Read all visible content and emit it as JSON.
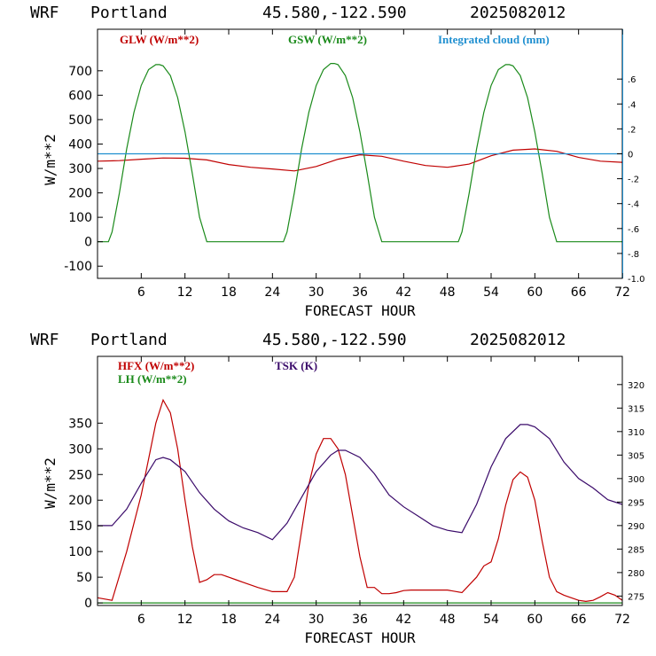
{
  "charts": [
    {
      "header": {
        "model": "WRF",
        "location": "Portland",
        "coords": "45.580,-122.590",
        "run": "2025082012"
      },
      "ylabel": "W/m**2",
      "xlabel": "FORECAST HOUR",
      "xticks": [
        "6",
        "12",
        "18",
        "24",
        "30",
        "36",
        "42",
        "48",
        "54",
        "60",
        "66",
        "72"
      ],
      "yticks": [
        "700",
        "600",
        "500",
        "400",
        "300",
        "200",
        "100",
        "0",
        "-100"
      ],
      "rticks": [
        ".6",
        ".4",
        ".2",
        "0",
        "-.2",
        "-.4",
        "-.6",
        "-.8",
        "-1.0"
      ],
      "legend": [
        {
          "label": "GLW (W/m**2)",
          "color": "#c00000"
        },
        {
          "label": "GSW (W/m**2)",
          "color": "#1a8a1a"
        },
        {
          "label": "Integrated cloud (mm)",
          "color": "#1f8fd0"
        }
      ]
    },
    {
      "header": {
        "model": "WRF",
        "location": "Portland",
        "coords": "45.580,-122.590",
        "run": "2025082012"
      },
      "ylabel": "W/m**2",
      "xlabel": "FORECAST HOUR",
      "xticks": [
        "6",
        "12",
        "18",
        "24",
        "30",
        "36",
        "42",
        "48",
        "54",
        "60",
        "66",
        "72"
      ],
      "yticks": [
        "350",
        "300",
        "250",
        "200",
        "150",
        "100",
        "50",
        "0"
      ],
      "rticks": [
        "320",
        "315",
        "310",
        "305",
        "300",
        "295",
        "290",
        "285",
        "280",
        "275"
      ],
      "legend": [
        {
          "label": "HFX (W/m**2)",
          "color": "#c00000"
        },
        {
          "label": "LH  (W/m**2)",
          "color": "#1a8a1a"
        },
        {
          "label": "TSK (K)",
          "color": "#3a0a6a"
        }
      ]
    }
  ],
  "chart_data": [
    {
      "type": "line",
      "xlim": [
        0,
        72
      ],
      "ylim": [
        -150,
        870
      ],
      "y2lim": [
        -1.0,
        1.0
      ],
      "series": [
        {
          "name": "GLW (W/m**2)",
          "color": "#c00000",
          "axis": "left",
          "x": [
            0,
            3,
            6,
            9,
            12,
            15,
            18,
            21,
            24,
            27,
            30,
            33,
            36,
            39,
            42,
            45,
            48,
            51,
            54,
            57,
            60,
            63,
            66,
            69,
            72
          ],
          "y": [
            330,
            332,
            338,
            343,
            342,
            335,
            316,
            305,
            298,
            290,
            308,
            338,
            356,
            350,
            330,
            312,
            305,
            318,
            352,
            375,
            380,
            370,
            345,
            330,
            325
          ]
        },
        {
          "name": "GSW (W/m**2)",
          "color": "#1a8a1a",
          "axis": "left",
          "x": [
            0,
            1.5,
            2,
            3,
            4,
            5,
            6,
            7,
            8,
            8.5,
            9,
            10,
            11,
            12,
            13,
            14,
            15,
            24,
            25.5,
            26,
            27,
            28,
            29,
            30,
            31,
            32,
            32.5,
            33,
            34,
            35,
            36,
            37,
            38,
            39,
            48,
            49.5,
            50,
            51,
            52,
            53,
            54,
            55,
            56,
            56.5,
            57,
            58,
            59,
            60,
            61,
            62,
            63,
            72
          ],
          "y": [
            0,
            0,
            40,
            200,
            380,
            530,
            640,
            705,
            725,
            725,
            720,
            680,
            590,
            450,
            280,
            100,
            0,
            0,
            0,
            40,
            200,
            380,
            530,
            640,
            705,
            730,
            730,
            725,
            680,
            590,
            450,
            280,
            100,
            0,
            0,
            0,
            40,
            200,
            380,
            530,
            640,
            705,
            725,
            725,
            720,
            680,
            590,
            450,
            280,
            100,
            0,
            0
          ]
        },
        {
          "name": "Integrated cloud (mm)",
          "color": "#1f8fd0",
          "axis": "right",
          "x": [
            0,
            72
          ],
          "y": [
            0,
            0
          ]
        }
      ]
    },
    {
      "type": "line",
      "xlim": [
        0,
        72
      ],
      "ylim": [
        -5,
        480
      ],
      "y2lim": [
        273,
        326
      ],
      "series": [
        {
          "name": "HFX (W/m**2)",
          "color": "#c00000",
          "axis": "left",
          "x": [
            0,
            2,
            4,
            6,
            7,
            8,
            9,
            10,
            11,
            12,
            13,
            14,
            15,
            16,
            17,
            18,
            19,
            20,
            22,
            24,
            26,
            27,
            28,
            29,
            30,
            31,
            32,
            33,
            34,
            35,
            36,
            37,
            38,
            39,
            40,
            41,
            42,
            43,
            44,
            46,
            48,
            50,
            51,
            52,
            53,
            54,
            55,
            56,
            57,
            58,
            59,
            60,
            61,
            62,
            63,
            64,
            65,
            66,
            67,
            68,
            69,
            70,
            71,
            72
          ],
          "y": [
            10,
            5,
            100,
            210,
            280,
            350,
            395,
            370,
            300,
            200,
            110,
            40,
            45,
            55,
            55,
            50,
            45,
            40,
            30,
            22,
            22,
            50,
            140,
            230,
            290,
            320,
            320,
            300,
            250,
            170,
            90,
            30,
            30,
            18,
            18,
            20,
            24,
            25,
            25,
            25,
            25,
            20,
            35,
            50,
            72,
            80,
            125,
            190,
            240,
            255,
            245,
            200,
            120,
            50,
            22,
            15,
            10,
            5,
            3,
            5,
            12,
            20,
            15,
            5
          ]
        },
        {
          "name": "LH  (W/m**2)",
          "color": "#1a8a1a",
          "axis": "left",
          "x": [
            0,
            72
          ],
          "y": [
            0,
            0
          ]
        },
        {
          "name": "TSK (K)",
          "color": "#3a0a6a",
          "axis": "right",
          "x": [
            0,
            2,
            4,
            6,
            8,
            9,
            10,
            12,
            14,
            16,
            18,
            20,
            22,
            24,
            26,
            28,
            30,
            32,
            33,
            34,
            36,
            38,
            40,
            42,
            44,
            46,
            48,
            50,
            52,
            54,
            56,
            58,
            59,
            60,
            62,
            64,
            66,
            68,
            70,
            72
          ],
          "y": [
            290.0,
            290.0,
            293.5,
            299.0,
            304.0,
            304.5,
            304.0,
            301.5,
            297.0,
            293.5,
            291.0,
            289.5,
            288.5,
            287.0,
            290.5,
            296.0,
            301.5,
            305.0,
            306.0,
            306.0,
            304.5,
            301.0,
            296.5,
            294.0,
            292.0,
            290.0,
            289.0,
            288.5,
            294.5,
            302.5,
            308.5,
            311.5,
            311.5,
            311.0,
            308.5,
            303.5,
            300.0,
            298.0,
            295.5,
            294.5
          ]
        }
      ]
    }
  ]
}
